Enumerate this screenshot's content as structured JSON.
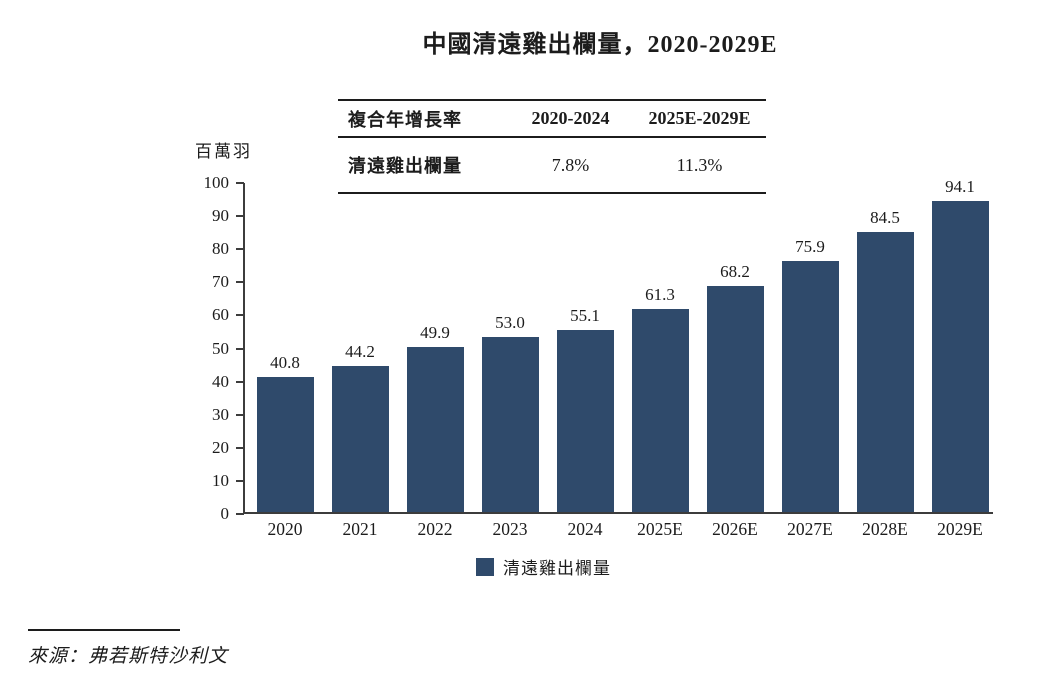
{
  "title": "中國清遠雞出欄量，2020-2029E",
  "cagr_table": {
    "header": {
      "metric": "複合年增長率",
      "period1": "2020-2024",
      "period2": "2025E-2029E"
    },
    "row": {
      "metric": "清遠雞出欄量",
      "period1": "7.8%",
      "period2": "11.3%"
    }
  },
  "chart_data": {
    "type": "bar",
    "title": "中國清遠雞出欄量，2020-2029E",
    "ylabel": "百萬羽",
    "categories": [
      "2020",
      "2021",
      "2022",
      "2023",
      "2024",
      "2025E",
      "2026E",
      "2027E",
      "2028E",
      "2029E"
    ],
    "values": [
      40.8,
      44.2,
      49.9,
      53.0,
      55.1,
      61.3,
      68.2,
      75.9,
      84.5,
      94.1
    ],
    "value_labels": [
      "40.8",
      "44.2",
      "49.9",
      "53.0",
      "55.1",
      "61.3",
      "68.2",
      "75.9",
      "84.5",
      "94.1"
    ],
    "ylim": [
      0,
      100
    ],
    "yticks": [
      0,
      10,
      20,
      30,
      40,
      50,
      60,
      70,
      80,
      90,
      100
    ],
    "grid": false,
    "legend": {
      "label": "清遠雞出欄量",
      "position": "bottom"
    },
    "bar_color": "#2F4A6B"
  },
  "source": "來源：弗若斯特沙利文"
}
